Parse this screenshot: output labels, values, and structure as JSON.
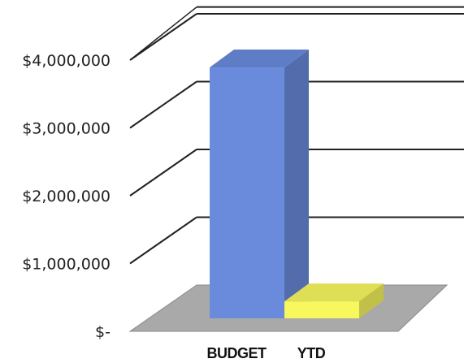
{
  "chart_data": {
    "type": "bar",
    "style": "3d-column",
    "categories": [
      "BUDGET",
      "YTD"
    ],
    "values": [
      3700000,
      250000
    ],
    "bar_colors": [
      "#6a8bdc",
      "#f8f85e"
    ],
    "ylim": [
      0,
      4000000
    ],
    "yticks": [
      0,
      1000000,
      2000000,
      3000000,
      4000000
    ],
    "ytick_labels": [
      "$-",
      "$1,000,000",
      "$2,000,000",
      "$3,000,000",
      "$4,000,000"
    ],
    "grid": true,
    "legend": "none",
    "title": "",
    "xlabel": "",
    "ylabel": ""
  }
}
